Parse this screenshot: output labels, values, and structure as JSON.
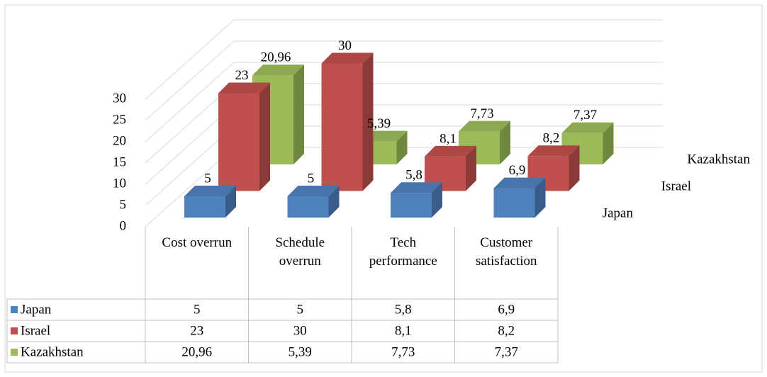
{
  "chart_data": {
    "type": "bar3d",
    "categories": [
      "Cost overrun",
      "Schedule overrun",
      "Tech performance",
      "Customer satisfaction"
    ],
    "series": [
      {
        "name": "Japan",
        "color": "#4f81bd",
        "values": [
          5,
          5,
          5.8,
          6.9
        ],
        "value_labels": [
          "5",
          "5",
          "5,8",
          "6,9"
        ]
      },
      {
        "name": "Israel",
        "color": "#c0504d",
        "values": [
          23,
          30,
          8.1,
          8.2
        ],
        "value_labels": [
          "23",
          "30",
          "8,1",
          "8,2"
        ]
      },
      {
        "name": "Kazakhstan",
        "color": "#9bbb59",
        "values": [
          20.96,
          5.39,
          7.73,
          7.37
        ],
        "value_labels": [
          "20,96",
          "5,39",
          "7,73",
          "7,37"
        ]
      }
    ],
    "ylim": [
      0,
      30
    ],
    "yticks": [
      0,
      5,
      10,
      15,
      20,
      25,
      30
    ],
    "grid": true,
    "data_table": true
  }
}
